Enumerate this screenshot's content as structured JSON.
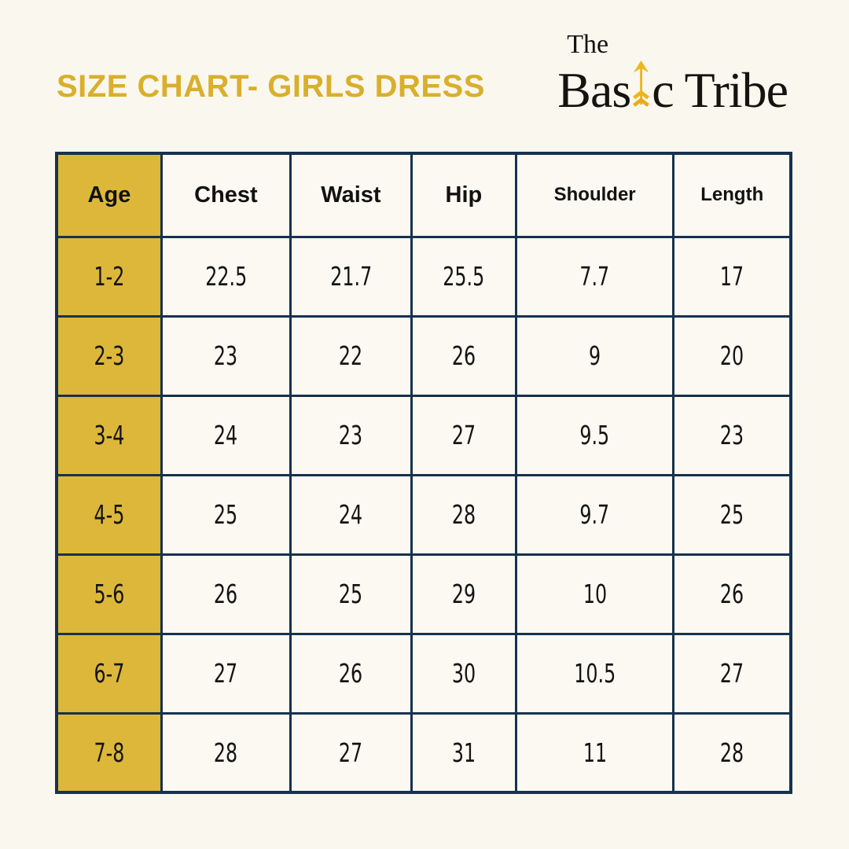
{
  "header": {
    "title": "SIZE CHART- GIRLS DRESS",
    "logo": {
      "the": "The",
      "basic_left": "Bas",
      "basic_right": "c",
      "tribe": "Tribe"
    }
  },
  "chart_data": {
    "type": "table",
    "title": "SIZE CHART- GIRLS DRESS",
    "columns": [
      "Age",
      "Chest",
      "Waist",
      "Hip",
      "Shoulder",
      "Length"
    ],
    "rows": [
      [
        "1-2",
        "22.5",
        "21.7",
        "25.5",
        "7.7",
        "17"
      ],
      [
        "2-3",
        "23",
        "22",
        "26",
        "9",
        "20"
      ],
      [
        "3-4",
        "24",
        "23",
        "27",
        "9.5",
        "23"
      ],
      [
        "4-5",
        "25",
        "24",
        "28",
        "9.7",
        "25"
      ],
      [
        "5-6",
        "26",
        "25",
        "29",
        "10",
        "26"
      ],
      [
        "6-7",
        "27",
        "26",
        "30",
        "10.5",
        "27"
      ],
      [
        "7-8",
        "28",
        "27",
        "31",
        "11",
        "28"
      ]
    ],
    "layout": {
      "age_column_highlighted": true,
      "grid": true
    }
  },
  "colors": {
    "background_cream": "#FAF7EE",
    "title_gold": "#D9AF2D",
    "age_column_gold": "#DDB73A",
    "table_border_navy": "#16324E",
    "cell_background": "#FBF9F1",
    "text_dark": "#141414",
    "logo_arrow_gold": "#EFB51E",
    "logo_text_black": "#151210"
  }
}
